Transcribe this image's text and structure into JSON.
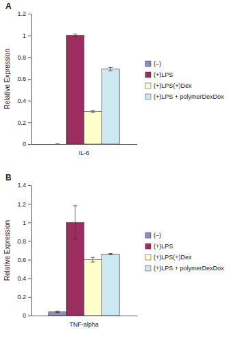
{
  "chart_data": [
    {
      "type": "bar",
      "title": "A",
      "y_label": "Relative Expression",
      "categories": [
        "IL-6"
      ],
      "series": [
        {
          "name": "(–)",
          "color": "#8f8cc4",
          "values": [
            0
          ],
          "errors": [
            0
          ]
        },
        {
          "name": "(+)LPS",
          "color": "#9b2d5f",
          "values": [
            1.0
          ],
          "errors": [
            0.012
          ]
        },
        {
          "name": "(+)LPS(+)Dex",
          "color": "#ffffcc",
          "values": [
            0.3
          ],
          "errors": [
            0.01
          ]
        },
        {
          "name": "(+)LPS + polymerDexDox",
          "color": "#cce8f2",
          "values": [
            0.69
          ],
          "errors": [
            0.015
          ]
        }
      ],
      "ylim": [
        0,
        1.2
      ],
      "yticks": [
        0,
        0.2,
        0.4,
        0.6,
        0.8,
        1,
        1.2
      ],
      "grid": false,
      "legend": "right"
    },
    {
      "type": "bar",
      "title": "B",
      "y_label": "Relative Expression",
      "categories": [
        "TNF-alpha"
      ],
      "series": [
        {
          "name": "(–)",
          "color": "#8f8cc4",
          "values": [
            0.04
          ],
          "errors": [
            0.008
          ]
        },
        {
          "name": "(+)LPS",
          "color": "#9b2d5f",
          "values": [
            1.0
          ],
          "errors": [
            0.18
          ]
        },
        {
          "name": "(+)LPS(+)Dex",
          "color": "#ffffcc",
          "values": [
            0.6
          ],
          "errors": [
            0.025
          ]
        },
        {
          "name": "(+)LPS + polymerDexDox",
          "color": "#cce8f2",
          "values": [
            0.66
          ],
          "errors": [
            0.006
          ]
        }
      ],
      "ylim": [
        0,
        1.4
      ],
      "yticks": [
        0,
        0.2,
        0.4,
        0.6,
        0.8,
        1,
        1.2,
        1.4
      ],
      "grid": false,
      "legend": "right"
    }
  ]
}
